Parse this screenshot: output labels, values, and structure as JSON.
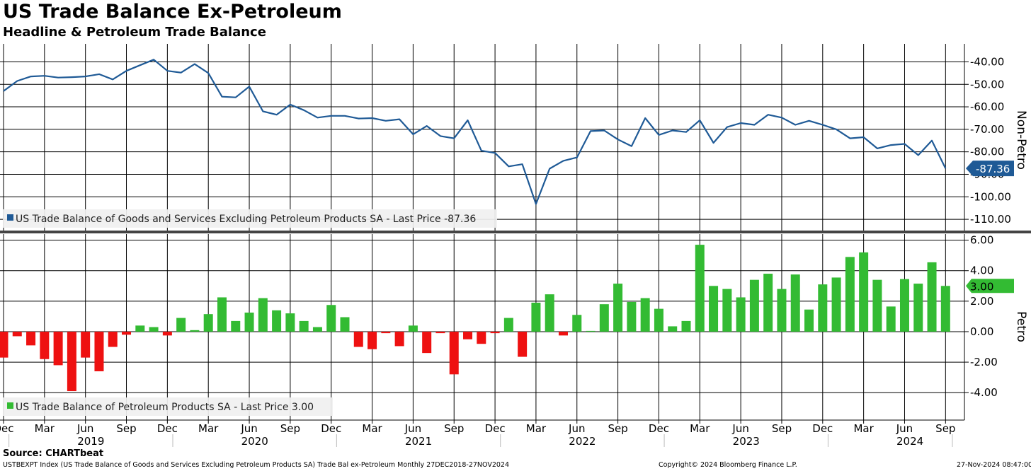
{
  "header": {
    "title": "US Trade Balance Ex-Petroleum",
    "subtitle": "Headline & Petroleum Trade Balance"
  },
  "footer": {
    "source": "Source: CHARTbeat",
    "index_note": "USTBEXPT Index (US Trade Balance of Goods and Services Excluding Petroleum Products SA) Trade Bal ex-Petroleum  Monthly 27DEC2018-27NOV2024",
    "copyright": "Copyright© 2024 Bloomberg Finance L.P.",
    "timestamp": "27-Nov-2024 08:47:00"
  },
  "colors": {
    "line": "#1f5a96",
    "positive_bar": "#33bb33",
    "negative_bar": "#ee1111",
    "grid": "#000000",
    "last_line_label_bg": "#1f5a96",
    "last_bar_label_bg": "#33bb33"
  },
  "chart_data": [
    {
      "type": "line",
      "axis_title": "Non-Petro",
      "legend": "US Trade Balance of Goods and Services Excluding Petroleum Products SA - Last Price -87.36",
      "last_value_label": "-87.36",
      "ylim": [
        -115,
        -32
      ],
      "yticks": [
        "-40.00",
        "-50.00",
        "-60.00",
        "-70.00",
        "-80.00",
        "-90.00",
        "-100.00",
        "-110.00"
      ],
      "ytick_values": [
        -40,
        -50,
        -60,
        -70,
        -80,
        -90,
        -100,
        -110
      ],
      "x": [
        "2018-12",
        "2019-01",
        "2019-02",
        "2019-03",
        "2019-04",
        "2019-05",
        "2019-06",
        "2019-07",
        "2019-08",
        "2019-09",
        "2019-10",
        "2019-11",
        "2019-12",
        "2020-01",
        "2020-02",
        "2020-03",
        "2020-04",
        "2020-05",
        "2020-06",
        "2020-07",
        "2020-08",
        "2020-09",
        "2020-10",
        "2020-11",
        "2020-12",
        "2021-01",
        "2021-02",
        "2021-03",
        "2021-04",
        "2021-05",
        "2021-06",
        "2021-07",
        "2021-08",
        "2021-09",
        "2021-10",
        "2021-11",
        "2021-12",
        "2022-01",
        "2022-02",
        "2022-03",
        "2022-04",
        "2022-05",
        "2022-06",
        "2022-07",
        "2022-08",
        "2022-09",
        "2022-10",
        "2022-11",
        "2022-12",
        "2023-01",
        "2023-02",
        "2023-03",
        "2023-04",
        "2023-05",
        "2023-06",
        "2023-07",
        "2023-08",
        "2023-09",
        "2023-10",
        "2023-11",
        "2023-12",
        "2024-01",
        "2024-02",
        "2024-03",
        "2024-04",
        "2024-05",
        "2024-06",
        "2024-07",
        "2024-08",
        "2024-09"
      ],
      "values": [
        -53.0,
        -48.5,
        -46.5,
        -46.2,
        -47.0,
        -46.8,
        -46.5,
        -45.5,
        -47.8,
        -44.0,
        -41.5,
        -39.0,
        -44.0,
        -44.8,
        -41.0,
        -45.0,
        -55.5,
        -55.8,
        -51.0,
        -62.0,
        -63.5,
        -59.0,
        -61.5,
        -64.8,
        -64.0,
        -64.0,
        -65.2,
        -65.0,
        -66.2,
        -65.5,
        -72.2,
        -68.5,
        -73.0,
        -74.0,
        -66.0,
        -79.5,
        -80.5,
        -86.5,
        -85.5,
        -103.2,
        -87.5,
        -84.0,
        -82.5,
        -70.8,
        -70.5,
        -74.5,
        -77.5,
        -65.0,
        -72.5,
        -70.5,
        -71.2,
        -66.0,
        -76.0,
        -69.0,
        -67.2,
        -68.0,
        -63.5,
        -64.8,
        -68.0,
        -66.2,
        -68.0,
        -70.0,
        -74.0,
        -73.5,
        -78.5,
        -77.0,
        -76.5,
        -81.5,
        -75.0,
        -87.36
      ]
    },
    {
      "type": "bar",
      "axis_title": "Petro",
      "legend": "US Trade Balance of Petroleum Products SA - Last Price 3.00",
      "last_value_label": "3.00",
      "ylim": [
        -5.8,
        6.4
      ],
      "yticks": [
        "6.00",
        "4.00",
        "2.00",
        "0.00",
        "-2.00",
        "-4.00"
      ],
      "ytick_values": [
        6,
        4,
        2,
        0,
        -2,
        -4
      ],
      "x": [
        "2018-12",
        "2019-01",
        "2019-02",
        "2019-03",
        "2019-04",
        "2019-05",
        "2019-06",
        "2019-07",
        "2019-08",
        "2019-09",
        "2019-10",
        "2019-11",
        "2019-12",
        "2020-01",
        "2020-02",
        "2020-03",
        "2020-04",
        "2020-05",
        "2020-06",
        "2020-07",
        "2020-08",
        "2020-09",
        "2020-10",
        "2020-11",
        "2020-12",
        "2021-01",
        "2021-02",
        "2021-03",
        "2021-04",
        "2021-05",
        "2021-06",
        "2021-07",
        "2021-08",
        "2021-09",
        "2021-10",
        "2021-11",
        "2021-12",
        "2022-01",
        "2022-02",
        "2022-03",
        "2022-04",
        "2022-05",
        "2022-06",
        "2022-07",
        "2022-08",
        "2022-09",
        "2022-10",
        "2022-11",
        "2022-12",
        "2023-01",
        "2023-02",
        "2023-03",
        "2023-04",
        "2023-05",
        "2023-06",
        "2023-07",
        "2023-08",
        "2023-09",
        "2023-10",
        "2023-11",
        "2023-12",
        "2024-01",
        "2024-02",
        "2024-03",
        "2024-04",
        "2024-05",
        "2024-06",
        "2024-07",
        "2024-08",
        "2024-09"
      ],
      "values": [
        -1.7,
        -0.3,
        -0.9,
        -1.8,
        -2.2,
        -3.9,
        -1.7,
        -2.6,
        -1.0,
        -0.2,
        0.4,
        0.3,
        -0.25,
        0.9,
        0.1,
        1.15,
        2.25,
        0.7,
        1.25,
        2.2,
        1.4,
        1.2,
        0.7,
        0.3,
        1.75,
        0.95,
        -1.0,
        -1.15,
        -0.1,
        -0.95,
        0.4,
        -1.4,
        -0.1,
        -2.8,
        -0.5,
        -0.8,
        -0.1,
        0.9,
        -1.65,
        1.9,
        2.45,
        -0.25,
        1.1,
        0.05,
        1.8,
        3.15,
        1.95,
        2.2,
        1.5,
        0.35,
        0.7,
        5.7,
        3.0,
        2.8,
        2.25,
        3.4,
        3.8,
        2.8,
        3.75,
        1.45,
        3.1,
        3.55,
        4.9,
        5.2,
        3.4,
        1.65,
        3.45,
        3.15,
        4.55,
        3.0
      ]
    }
  ],
  "x_axis": {
    "month_labels": [
      "Dec",
      "Mar",
      "Jun",
      "Sep",
      "Dec",
      "Mar",
      "Jun",
      "Sep",
      "Dec",
      "Mar",
      "Jun",
      "Sep",
      "Dec",
      "Mar",
      "Jun",
      "Sep",
      "Dec",
      "Mar",
      "Jun",
      "Sep",
      "Dec",
      "Mar",
      "Jun",
      "Sep"
    ],
    "month_label_x": [
      "2018-12",
      "2019-03",
      "2019-06",
      "2019-09",
      "2019-12",
      "2020-03",
      "2020-06",
      "2020-09",
      "2020-12",
      "2021-03",
      "2021-06",
      "2021-09",
      "2021-12",
      "2022-03",
      "2022-06",
      "2022-09",
      "2022-12",
      "2023-03",
      "2023-06",
      "2023-09",
      "2023-12",
      "2024-03",
      "2024-06",
      "2024-09"
    ],
    "year_labels": [
      "2019",
      "2020",
      "2021",
      "2022",
      "2023",
      "2024"
    ]
  }
}
